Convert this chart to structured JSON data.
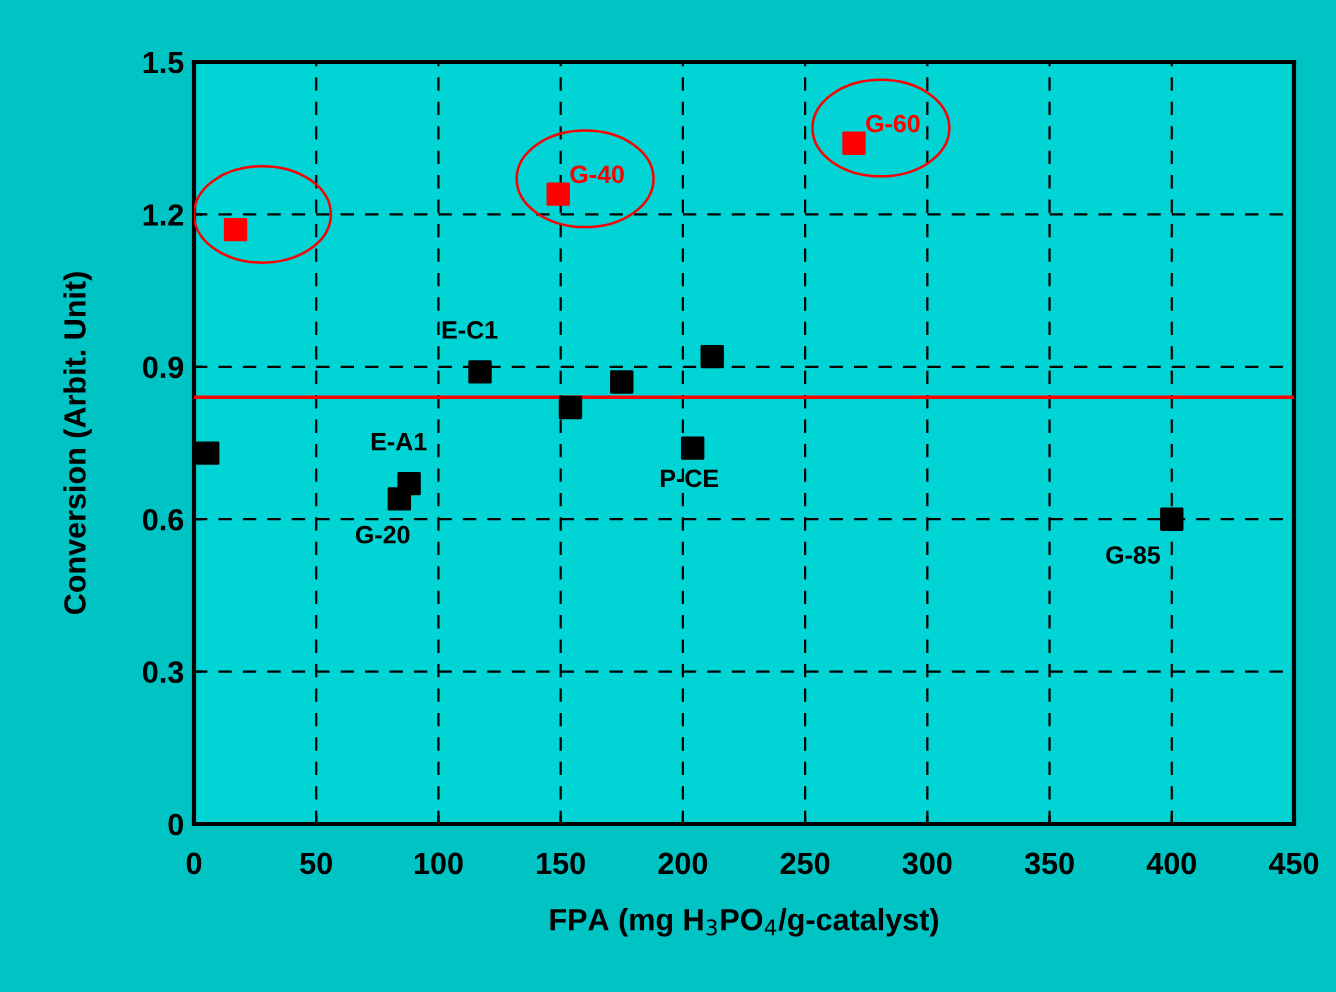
{
  "chart_data": {
    "type": "scatter",
    "xlabel": "FPA (mg H$_{3}$PO$_{4}$/g-catalyst)",
    "ylabel": "Conversion (Arbit. Unit)",
    "series": [
      {
        "color": "#000000",
        "x": [
          5.6,
          117,
          175,
          212,
          154,
          204,
          88,
          84,
          400
        ],
        "values": [
          0.73,
          0.89,
          0.87,
          0.92,
          0.82,
          0.74,
          0.67,
          0.64,
          0.6
        ]
      },
      {
        "color": "#ff0000",
        "x": [
          17,
          149,
          270
        ],
        "values": [
          1.17,
          1.24,
          1.34
        ]
      }
    ],
    "annotations": [
      {
        "text": "G-40",
        "x": 149,
        "y": 1.24
      },
      {
        "text": "G-60",
        "x": 270,
        "y": 1.34
      },
      {
        "text": "E-C1",
        "x": 117,
        "y": 0.89
      },
      {
        "text": "E-A1",
        "x": 88,
        "y": 0.67
      },
      {
        "text": "G-20",
        "x": 84,
        "y": 0.64
      },
      {
        "text": "P-CE",
        "x": 204,
        "y": 0.74
      },
      {
        "text": "G-85",
        "x": 400,
        "y": 0.6
      }
    ],
    "ref_lines": [
      {
        "axis": "y",
        "value": 0.84,
        "color": "#ff0000"
      }
    ],
    "xlim": [
      0,
      450
    ],
    "xticks": [
      0,
      50,
      100,
      150,
      200,
      250,
      300,
      350,
      400,
      450
    ],
    "ylim": [
      0,
      1.5
    ],
    "yticks": [
      0,
      0.3,
      0.6,
      0.9,
      1.2,
      1.5
    ],
    "grid": true,
    "marker": "square"
  }
}
